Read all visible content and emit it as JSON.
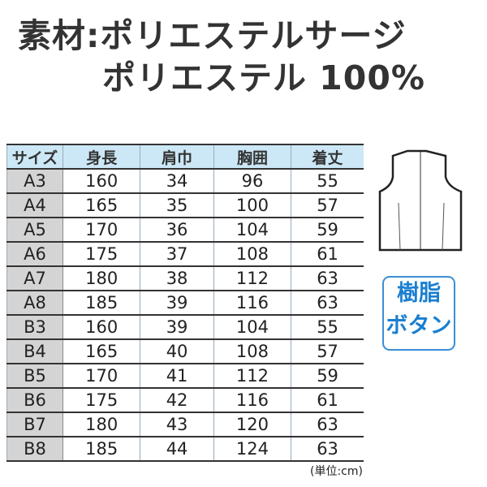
{
  "material_line1": "素材:ポリエステルサージ",
  "material_line2": "ポリエステル 100%",
  "table": {
    "headers": [
      "サイズ",
      "身長",
      "肩巾",
      "胸囲",
      "着丈"
    ],
    "rows": [
      [
        "A3",
        "160",
        "34",
        "96",
        "55"
      ],
      [
        "A4",
        "165",
        "35",
        "100",
        "57"
      ],
      [
        "A5",
        "170",
        "36",
        "104",
        "59"
      ],
      [
        "A6",
        "175",
        "37",
        "108",
        "61"
      ],
      [
        "A7",
        "180",
        "38",
        "112",
        "63"
      ],
      [
        "A8",
        "185",
        "39",
        "116",
        "63"
      ],
      [
        "B3",
        "160",
        "39",
        "104",
        "55"
      ],
      [
        "B4",
        "165",
        "40",
        "108",
        "57"
      ],
      [
        "B5",
        "170",
        "41",
        "112",
        "59"
      ],
      [
        "B6",
        "175",
        "42",
        "116",
        "61"
      ],
      [
        "B7",
        "180",
        "43",
        "120",
        "63"
      ],
      [
        "B8",
        "185",
        "44",
        "124",
        "63"
      ]
    ]
  },
  "badge": {
    "line1": "樹脂",
    "line2": "ボタン",
    "color": "#1a7fd0"
  },
  "unit": "(単位:cm)"
}
